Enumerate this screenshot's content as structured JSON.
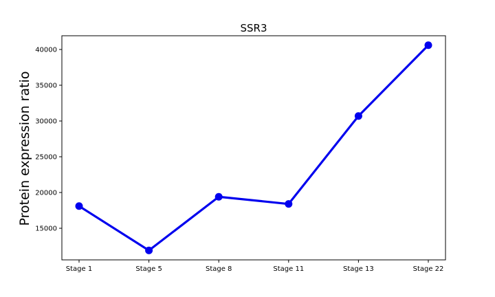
{
  "chart_data": {
    "type": "line",
    "title": "SSR3",
    "xlabel": "",
    "ylabel": "Protein expression ratio",
    "categories": [
      "Stage 1",
      "Stage 5",
      "Stage 8",
      "Stage 11",
      "Stage 13",
      "Stage 22"
    ],
    "series": [
      {
        "values": [
          18100,
          11900,
          19400,
          18400,
          30700,
          40600
        ],
        "color": "#0000ee"
      }
    ],
    "yticks": [
      15000,
      20000,
      25000,
      30000,
      35000,
      40000
    ],
    "ytick_labels": [
      "15000",
      "20000",
      "25000",
      "30000",
      "35000",
      "40000"
    ],
    "ylim": [
      10580,
      41920
    ],
    "grid": false,
    "marker": "circle"
  }
}
